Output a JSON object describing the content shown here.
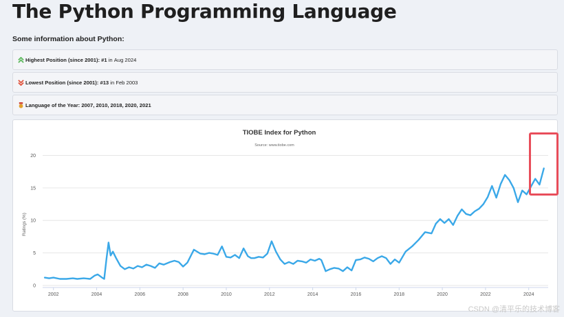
{
  "page": {
    "title": "The Python Programming Language",
    "intro": "Some information about Python:"
  },
  "info": {
    "highest": {
      "label": "Highest Position (since 2001):",
      "rank": "#1",
      "mid": "in",
      "date": "Aug 2024",
      "icon": "double-chevron-up-icon",
      "color": "#5cb85c"
    },
    "lowest": {
      "label": "Lowest Position (since 2001):",
      "rank": "#13",
      "mid": "in",
      "date": "Feb 2003",
      "icon": "double-chevron-down-icon",
      "color": "#e0533c"
    },
    "loty": {
      "label": "Language of the Year:",
      "years": "2007, 2010, 2018, 2020, 2021",
      "icon": "medal-icon",
      "color": "#e2a02b"
    }
  },
  "chart_data": {
    "type": "line",
    "title": "TIOBE Index for Python",
    "subtitle": "Source: www.tiobe.com",
    "xlabel": "",
    "ylabel": "Ratings (%)",
    "xlim": [
      2001.5,
      2024.9
    ],
    "ylim": [
      0,
      21
    ],
    "y_ticks": [
      0,
      5,
      10,
      15,
      20
    ],
    "x_ticks": [
      2002,
      2004,
      2006,
      2008,
      2010,
      2012,
      2014,
      2016,
      2018,
      2020,
      2022,
      2024
    ],
    "grid": true,
    "legend": "none",
    "line_color": "#3aa8e8",
    "series": [
      {
        "x": [
          2001.6,
          2001.8,
          2002.0,
          2002.3,
          2002.6,
          2002.9,
          2003.1,
          2003.4,
          2003.7,
          2003.9,
          2004.05,
          2004.25,
          2004.35,
          2004.45,
          2004.55,
          2004.65,
          2004.75,
          2004.9,
          2005.1,
          2005.3,
          2005.5,
          2005.7,
          2005.9,
          2006.1,
          2006.3,
          2006.5,
          2006.7,
          2006.9,
          2007.1,
          2007.4,
          2007.6,
          2007.8,
          2008.0,
          2008.2,
          2008.5,
          2008.8,
          2009.0,
          2009.2,
          2009.4,
          2009.6,
          2009.8,
          2010.0,
          2010.2,
          2010.4,
          2010.6,
          2010.8,
          2011.0,
          2011.15,
          2011.3,
          2011.5,
          2011.7,
          2011.9,
          2012.1,
          2012.3,
          2012.5,
          2012.7,
          2012.9,
          2013.1,
          2013.3,
          2013.5,
          2013.7,
          2013.9,
          2014.1,
          2014.3,
          2014.4,
          2014.6,
          2014.8,
          2015.0,
          2015.2,
          2015.4,
          2015.6,
          2015.8,
          2016.0,
          2016.2,
          2016.4,
          2016.6,
          2016.8,
          2017.0,
          2017.2,
          2017.4,
          2017.6,
          2017.8,
          2018.0,
          2018.3,
          2018.6,
          2018.9,
          2019.2,
          2019.5,
          2019.7,
          2019.9,
          2020.1,
          2020.3,
          2020.5,
          2020.7,
          2020.9,
          2021.1,
          2021.3,
          2021.5,
          2021.7,
          2021.9,
          2022.1,
          2022.3,
          2022.5,
          2022.7,
          2022.9,
          2023.1,
          2023.3,
          2023.5,
          2023.7,
          2023.9,
          2024.1,
          2024.3,
          2024.5,
          2024.7
        ],
        "y": [
          1.2,
          1.1,
          1.2,
          1.0,
          1.0,
          1.1,
          1.0,
          1.1,
          1.0,
          1.5,
          1.7,
          1.2,
          1.0,
          4.0,
          6.6,
          4.6,
          5.2,
          4.2,
          3.0,
          2.5,
          2.8,
          2.6,
          3.0,
          2.8,
          3.2,
          3.0,
          2.7,
          3.4,
          3.2,
          3.6,
          3.8,
          3.6,
          2.9,
          3.5,
          5.5,
          4.9,
          4.8,
          5.0,
          4.9,
          4.7,
          6.0,
          4.4,
          4.3,
          4.7,
          4.2,
          5.7,
          4.5,
          4.2,
          4.2,
          4.4,
          4.3,
          4.9,
          6.8,
          5.2,
          4.0,
          3.3,
          3.6,
          3.3,
          3.8,
          3.7,
          3.5,
          4.0,
          3.8,
          4.1,
          3.9,
          2.2,
          2.5,
          2.7,
          2.6,
          2.2,
          2.8,
          2.3,
          3.9,
          4.0,
          4.3,
          4.1,
          3.7,
          4.2,
          4.5,
          4.2,
          3.3,
          4.0,
          3.5,
          5.2,
          6.0,
          7.0,
          8.2,
          8.0,
          9.5,
          10.2,
          9.6,
          10.2,
          9.3,
          10.7,
          11.7,
          11.0,
          10.8,
          11.4,
          11.8,
          12.5,
          13.6,
          15.3,
          13.5,
          15.6,
          17.0,
          16.2,
          15.0,
          12.8,
          14.6,
          14.0,
          15.2,
          16.4,
          15.5,
          18.0
        ]
      }
    ]
  },
  "watermark": "CSDN @清平乐的技术博客"
}
